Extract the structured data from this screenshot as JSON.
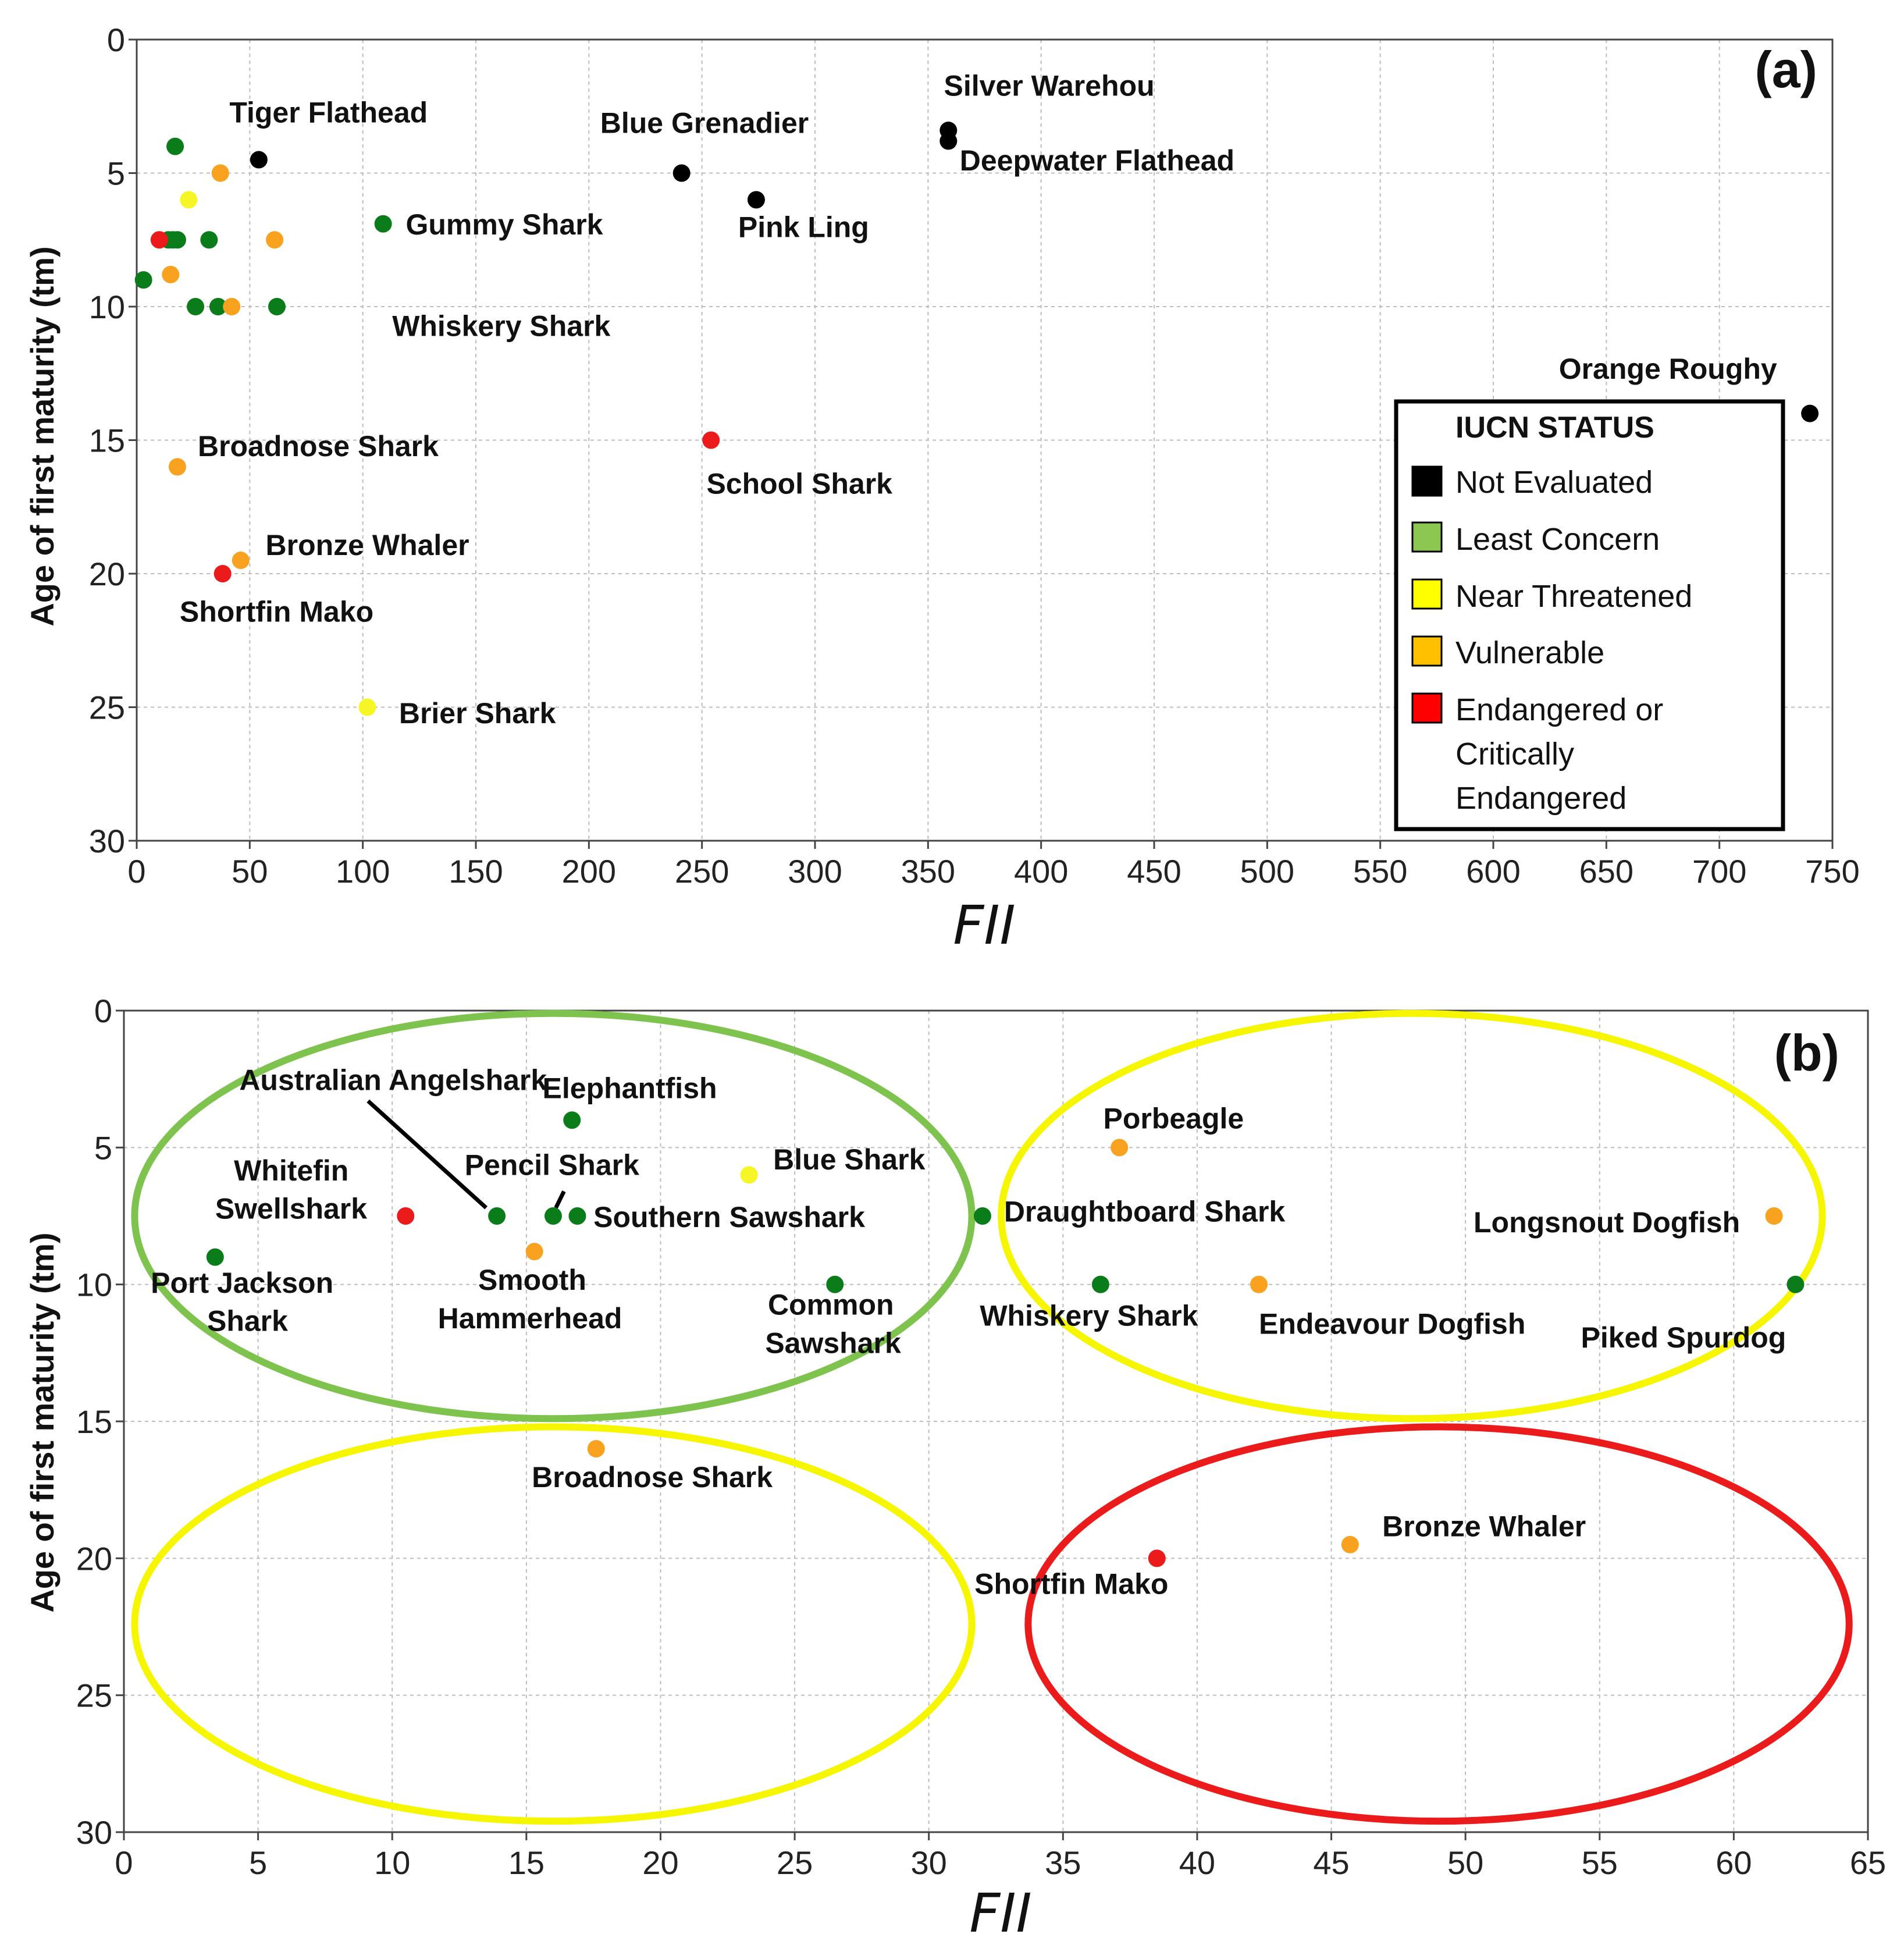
{
  "colors": {
    "Not Evaluated": "#000000",
    "Least Concern": "#0a7d1a",
    "Near Threatened": "#f6f626",
    "Vulnerable": "#f8a21f",
    "Endangered": "#ec1b1b"
  },
  "legend": {
    "title": "IUCN STATUS",
    "items": [
      {
        "label": "Not Evaluated",
        "color": "#000000"
      },
      {
        "label": "Least Concern",
        "color": "#8cc851"
      },
      {
        "label": "Near Threatened",
        "color": "#ffff00"
      },
      {
        "label": "Vulnerable",
        "color": "#ffc000"
      },
      {
        "label": "Endangered or Critically Endangered",
        "lines": [
          "Endangered or",
          "Critically",
          "Endangered"
        ],
        "color": "#ff0000"
      }
    ]
  },
  "chart_data": [
    {
      "panel": "(a)",
      "type": "scatter",
      "xlabel": "FII",
      "ylabel": "Age of first maturity (tm)",
      "xlim": [
        0,
        750
      ],
      "ylim": [
        30,
        0
      ],
      "xticks": [
        0,
        50,
        100,
        150,
        200,
        250,
        300,
        350,
        400,
        450,
        500,
        550,
        600,
        650,
        700,
        750
      ],
      "yticks": [
        0,
        5,
        10,
        15,
        20,
        25,
        30
      ],
      "grid": true,
      "legend_position": "bottom-right",
      "points": [
        {
          "x": 54,
          "y": 4.5,
          "status": "Not Evaluated"
        },
        {
          "x": 241,
          "y": 5,
          "status": "Not Evaluated"
        },
        {
          "x": 359,
          "y": 3.4,
          "status": "Not Evaluated"
        },
        {
          "x": 359,
          "y": 3.8,
          "status": "Not Evaluated"
        },
        {
          "x": 274,
          "y": 6,
          "status": "Not Evaluated"
        },
        {
          "x": 740,
          "y": 14,
          "status": "Not Evaluated"
        },
        {
          "x": 17,
          "y": 4,
          "status": "Least Concern"
        },
        {
          "x": 109,
          "y": 6.9,
          "status": "Least Concern"
        },
        {
          "x": 14,
          "y": 7.5,
          "status": "Least Concern"
        },
        {
          "x": 16,
          "y": 7.5,
          "status": "Least Concern"
        },
        {
          "x": 18,
          "y": 7.5,
          "status": "Least Concern"
        },
        {
          "x": 32,
          "y": 7.5,
          "status": "Least Concern"
        },
        {
          "x": 3,
          "y": 9,
          "status": "Least Concern"
        },
        {
          "x": 26,
          "y": 10,
          "status": "Least Concern"
        },
        {
          "x": 36,
          "y": 10,
          "status": "Least Concern"
        },
        {
          "x": 62,
          "y": 10,
          "status": "Least Concern"
        },
        {
          "x": 23,
          "y": 6,
          "status": "Near Threatened"
        },
        {
          "x": 102,
          "y": 25,
          "status": "Near Threatened"
        },
        {
          "x": 37,
          "y": 5,
          "status": "Vulnerable"
        },
        {
          "x": 61,
          "y": 7.5,
          "status": "Vulnerable"
        },
        {
          "x": 15,
          "y": 8.8,
          "status": "Vulnerable"
        },
        {
          "x": 42,
          "y": 10,
          "status": "Vulnerable"
        },
        {
          "x": 18,
          "y": 16,
          "status": "Vulnerable"
        },
        {
          "x": 46,
          "y": 19.5,
          "status": "Vulnerable"
        },
        {
          "x": 10,
          "y": 7.5,
          "status": "Endangered"
        },
        {
          "x": 38,
          "y": 20,
          "status": "Endangered"
        },
        {
          "x": 254,
          "y": 15,
          "status": "Endangered"
        }
      ],
      "annotations": [
        {
          "text": "Tiger Flathead",
          "x": 41,
          "y": 3.1
        },
        {
          "text": "Blue Grenadier",
          "x": 205,
          "y": 3.5
        },
        {
          "text": "Silver Warehou",
          "x": 357,
          "y": 2.1
        },
        {
          "text": "Deepwater Flathead",
          "x": 364,
          "y": 4.9
        },
        {
          "text": "Pink Ling",
          "x": 266,
          "y": 7.4
        },
        {
          "text": "Gummy Shark",
          "x": 119,
          "y": 7.3
        },
        {
          "text": "Whiskery Shark",
          "x": 113,
          "y": 11.1
        },
        {
          "text": "Orange Roughy",
          "x": 629,
          "y": 12.7
        },
        {
          "text": "Broadnose Shark",
          "x": 27,
          "y": 15.6
        },
        {
          "text": "School Shark",
          "x": 252,
          "y": 17.0
        },
        {
          "text": "Bronze Whaler",
          "x": 57,
          "y": 19.3
        },
        {
          "text": "Shortfin Mako",
          "x": 19,
          "y": 21.8
        },
        {
          "text": "Brier Shark",
          "x": 116,
          "y": 25.6
        }
      ]
    },
    {
      "panel": "(b)",
      "type": "scatter",
      "xlabel": "FII",
      "ylabel": "Age of first maturity (tm)",
      "xlim": [
        0,
        65
      ],
      "ylim": [
        30,
        0
      ],
      "xticks": [
        0,
        5,
        10,
        15,
        20,
        25,
        30,
        35,
        40,
        45,
        50,
        55,
        60,
        65
      ],
      "yticks": [
        0,
        5,
        10,
        15,
        20,
        25,
        30
      ],
      "grid": true,
      "points": [
        {
          "x": 16.7,
          "y": 4,
          "status": "Least Concern"
        },
        {
          "x": 13.9,
          "y": 7.5,
          "status": "Least Concern"
        },
        {
          "x": 16.0,
          "y": 7.5,
          "status": "Least Concern"
        },
        {
          "x": 16.9,
          "y": 7.5,
          "status": "Least Concern"
        },
        {
          "x": 32.0,
          "y": 7.5,
          "status": "Least Concern"
        },
        {
          "x": 3.4,
          "y": 9,
          "status": "Least Concern"
        },
        {
          "x": 26.5,
          "y": 10,
          "status": "Least Concern"
        },
        {
          "x": 36.4,
          "y": 10,
          "status": "Least Concern"
        },
        {
          "x": 62.3,
          "y": 10,
          "status": "Least Concern"
        },
        {
          "x": 23.3,
          "y": 6,
          "status": "Near Threatened"
        },
        {
          "x": 37.1,
          "y": 5,
          "status": "Vulnerable"
        },
        {
          "x": 61.5,
          "y": 7.5,
          "status": "Vulnerable"
        },
        {
          "x": 15.3,
          "y": 8.8,
          "status": "Vulnerable"
        },
        {
          "x": 42.3,
          "y": 10,
          "status": "Vulnerable"
        },
        {
          "x": 17.6,
          "y": 16,
          "status": "Vulnerable"
        },
        {
          "x": 45.7,
          "y": 19.5,
          "status": "Vulnerable"
        },
        {
          "x": 10.5,
          "y": 7.5,
          "status": "Endangered"
        },
        {
          "x": 38.5,
          "y": 20,
          "status": "Endangered"
        }
      ],
      "annotations": [
        {
          "text": "Australian Angelshark",
          "x": 4.3,
          "y": 2.9
        },
        {
          "text": "Elephantfish",
          "x": 15.6,
          "y": 3.2
        },
        {
          "text": "Porbeagle",
          "x": 36.5,
          "y": 4.3
        },
        {
          "text": "Whitefin",
          "x": 4.1,
          "y": 6.2
        },
        {
          "text": "Swellshark",
          "x": 3.4,
          "y": 7.6
        },
        {
          "text": "Pencil Shark",
          "x": 12.7,
          "y": 6.0
        },
        {
          "text": "Blue Shark",
          "x": 24.2,
          "y": 5.8
        },
        {
          "text": "Southern Sawshark",
          "x": 17.5,
          "y": 7.9
        },
        {
          "text": "Draughtboard Shark",
          "x": 32.8,
          "y": 7.7
        },
        {
          "text": "Longsnout Dogfish",
          "x": 50.3,
          "y": 8.1
        },
        {
          "text": "Port Jackson",
          "x": 1.0,
          "y": 10.3
        },
        {
          "text": "Shark",
          "x": 3.1,
          "y": 11.7
        },
        {
          "text": "Smooth",
          "x": 13.2,
          "y": 10.2
        },
        {
          "text": "Hammerhead",
          "x": 11.7,
          "y": 11.6
        },
        {
          "text": "Common",
          "x": 24.0,
          "y": 11.1
        },
        {
          "text": "Sawshark",
          "x": 23.9,
          "y": 12.5
        },
        {
          "text": "Whiskery Shark",
          "x": 31.9,
          "y": 11.5
        },
        {
          "text": "Endeavour Dogfish",
          "x": 42.3,
          "y": 11.8
        },
        {
          "text": "Piked Spurdog",
          "x": 54.3,
          "y": 12.3
        },
        {
          "text": "Broadnose Shark",
          "x": 15.2,
          "y": 17.4
        },
        {
          "text": "Bronze Whaler",
          "x": 46.9,
          "y": 19.2
        },
        {
          "text": "Shortfin Mako",
          "x": 31.7,
          "y": 21.3
        }
      ],
      "leader_lines": [
        {
          "from": [
            9.1,
            3.3
          ],
          "to": [
            13.5,
            7.2
          ]
        },
        {
          "from": [
            16.4,
            6.6
          ],
          "to": [
            16.1,
            7.2
          ]
        }
      ],
      "ellipses": [
        {
          "cx": 16,
          "cy": 7.5,
          "rx": 15.6,
          "ry": 7.4,
          "color": "#7fc34f",
          "category": "Least Concern"
        },
        {
          "cx": 48,
          "cy": 7.5,
          "rx": 15.3,
          "ry": 7.4,
          "color": "#f6f600",
          "category": "Near Threatened"
        },
        {
          "cx": 16,
          "cy": 22.4,
          "rx": 15.6,
          "ry": 7.2,
          "color": "#f6f600",
          "category": "Near Threatened"
        },
        {
          "cx": 49,
          "cy": 22.4,
          "rx": 15.3,
          "ry": 7.2,
          "color": "#ec1b1b",
          "category": "Endangered"
        }
      ]
    }
  ]
}
